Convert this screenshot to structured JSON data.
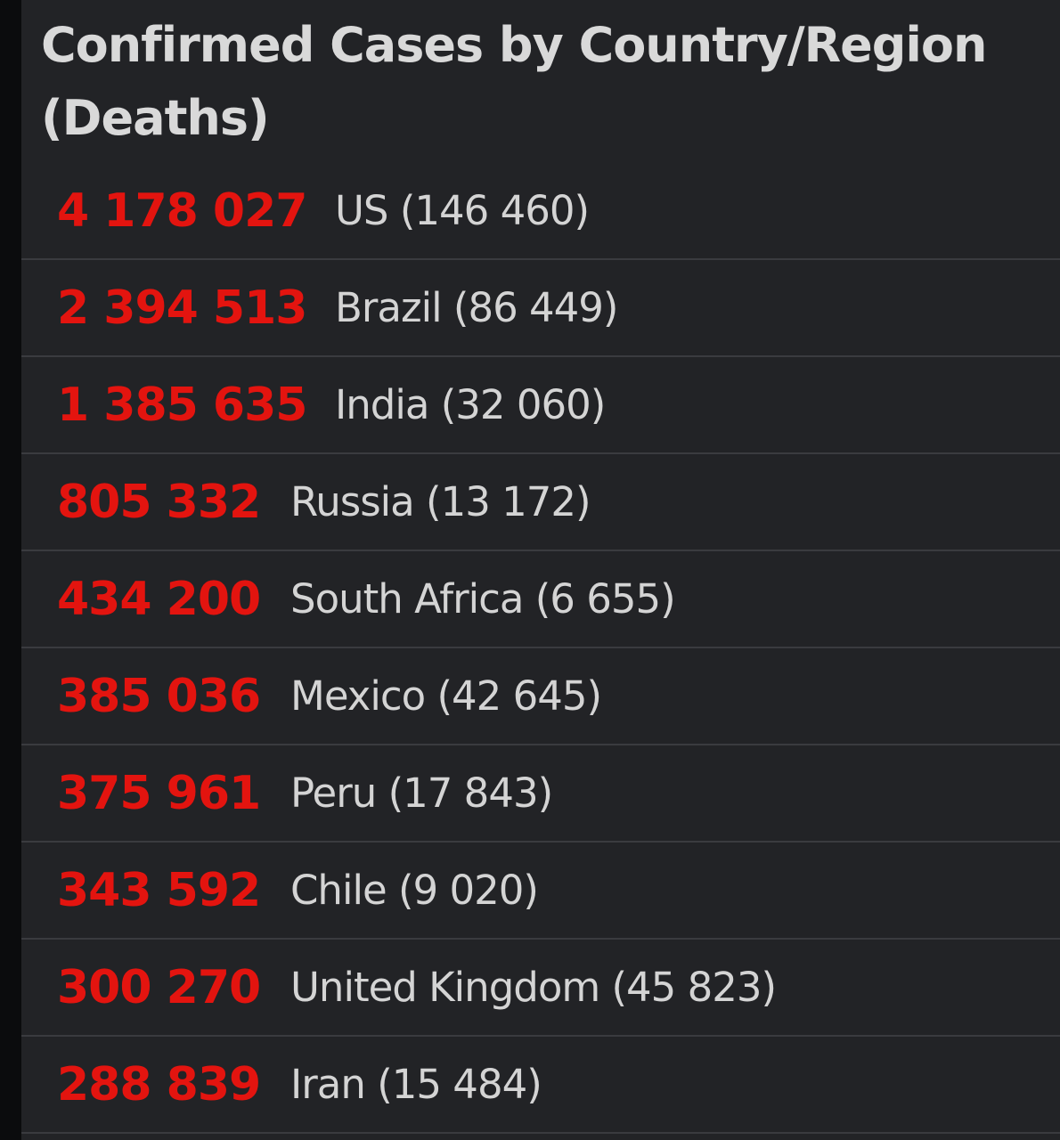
{
  "header": {
    "title": "Confirmed Cases by Country/Region (Deaths)"
  },
  "colors": {
    "cases": "#e3140f",
    "text": "#d4d4d4",
    "background": "#222326",
    "divider": "#3a3b3f"
  },
  "rows": [
    {
      "cases": "4 178 027",
      "country": "US",
      "deaths": "(146 460)"
    },
    {
      "cases": "2 394 513",
      "country": "Brazil",
      "deaths": "(86 449)"
    },
    {
      "cases": "1 385 635",
      "country": "India",
      "deaths": "(32 060)"
    },
    {
      "cases": "805 332",
      "country": "Russia",
      "deaths": "(13 172)"
    },
    {
      "cases": "434 200",
      "country": "South Africa",
      "deaths": "(6 655)"
    },
    {
      "cases": "385 036",
      "country": "Mexico",
      "deaths": "(42 645)"
    },
    {
      "cases": "375 961",
      "country": "Peru",
      "deaths": "(17 843)"
    },
    {
      "cases": "343 592",
      "country": "Chile",
      "deaths": "(9 020)"
    },
    {
      "cases": "300 270",
      "country": "United Kingdom",
      "deaths": "(45 823)"
    },
    {
      "cases": "288 839",
      "country": "Iran",
      "deaths": "(15 484)"
    }
  ]
}
